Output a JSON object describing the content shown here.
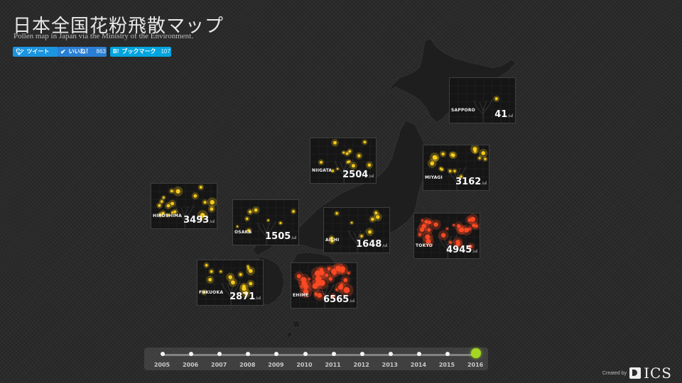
{
  "header": {
    "title": "日本全国花粉飛散マップ",
    "subtitle": "Pollen map in Japan via the Ministry of the Environment."
  },
  "social": {
    "tweet": {
      "label": "ツイート",
      "icon": "twitter-bird-icon"
    },
    "like": {
      "label": "いいね！",
      "count": "863",
      "icon": "checkmark-icon"
    },
    "hatena": {
      "icon_text": "B!",
      "label": "ブックマーク",
      "count": "107",
      "icon": "hatena-bookmark-icon"
    }
  },
  "cards": [
    {
      "id": "sapporo",
      "city": "SAPPORO",
      "value": "41",
      "unit": "/㎠",
      "level": 0.01
    },
    {
      "id": "niigata",
      "city": "NIIGATA",
      "value": "2504",
      "unit": "/㎠",
      "level": 0.38
    },
    {
      "id": "miyagi",
      "city": "MIYAGI",
      "value": "3162",
      "unit": "/㎠",
      "level": 0.48
    },
    {
      "id": "hiroshima",
      "city": "HIROSHIMA",
      "value": "3493",
      "unit": "/㎠",
      "level": 0.53
    },
    {
      "id": "osaka",
      "city": "OSAKA",
      "value": "1505",
      "unit": "/㎠",
      "level": 0.23
    },
    {
      "id": "aichi",
      "city": "AICHI",
      "value": "1648",
      "unit": "/㎠",
      "level": 0.25
    },
    {
      "id": "tokyo",
      "city": "TOKYO",
      "value": "4945",
      "unit": "/㎠",
      "level": 0.75
    },
    {
      "id": "fukuoka",
      "city": "FUKUOKA",
      "value": "2871",
      "unit": "/㎠",
      "level": 0.44
    },
    {
      "id": "ehime",
      "city": "EHIME",
      "value": "6565",
      "unit": "/㎠",
      "level": 1.0
    }
  ],
  "timeline": {
    "years": [
      "2005",
      "2006",
      "2007",
      "2008",
      "2009",
      "2010",
      "2011",
      "2012",
      "2013",
      "2014",
      "2015",
      "2016"
    ],
    "selected": "2016"
  },
  "colors": {
    "accent": "#a5d620",
    "pollen_low": "#ffd21a",
    "pollen_high": "#ff4a24"
  },
  "footer": {
    "created_by": "Created by",
    "logo_text": "ICS"
  }
}
